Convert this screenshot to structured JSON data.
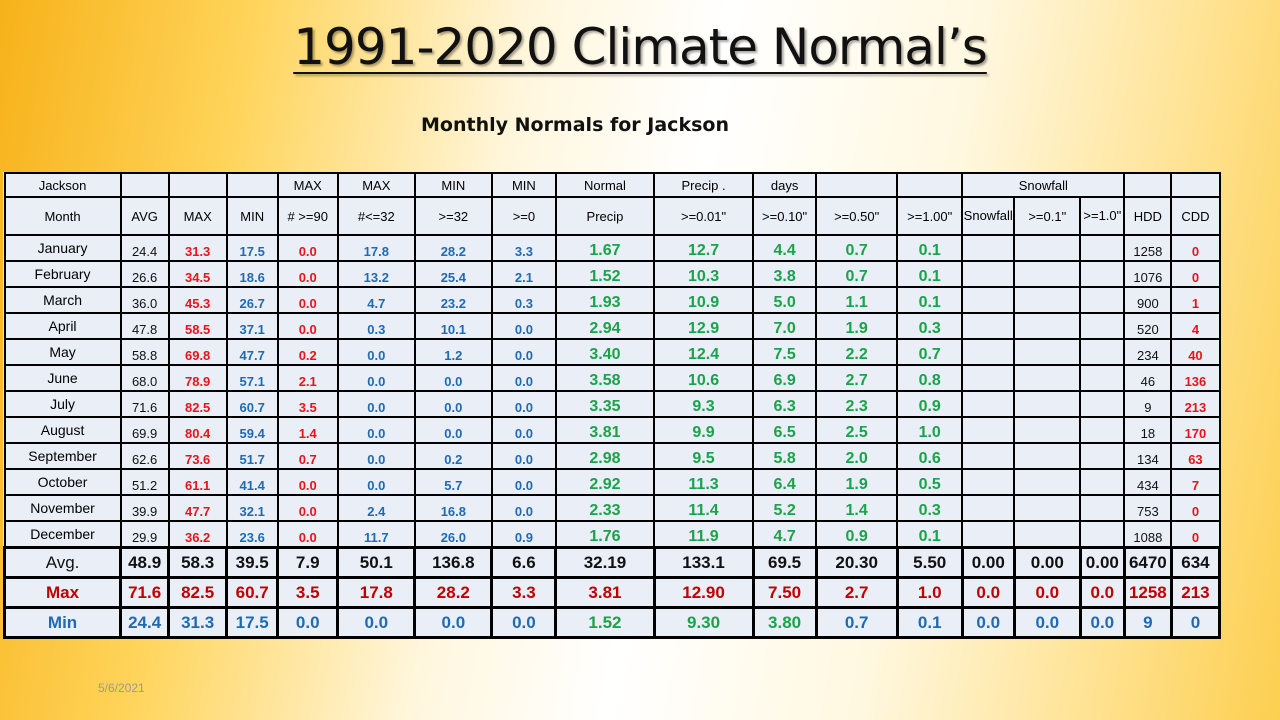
{
  "title": "1991-2020 Climate Normal’s",
  "subtitle": "Monthly Normals for Jackson",
  "date": "5/6/2021",
  "colors": {
    "max": "#e8141c",
    "min": "#1f6bb3",
    "precip": "#1aa34a"
  },
  "header1": [
    "Jackson",
    "",
    "",
    "",
    "MAX",
    "MAX",
    "MIN",
    "MIN",
    "Normal",
    "Precip .",
    "days",
    "",
    "",
    "Snowfall",
    "",
    ""
  ],
  "header2": [
    "Month",
    "AVG",
    "MAX",
    "MIN",
    "# >=90",
    "#<=32",
    ">=32",
    ">=0",
    "Precip",
    ">=0.01\"",
    ">=0.10\"",
    ">=0.50\"",
    ">=1.00\"",
    "Snowfall",
    ">=0.1\"",
    ">=1.0\"",
    "HDD",
    "CDD"
  ],
  "months": [
    [
      "January",
      "24.4",
      "31.3",
      "17.5",
      "0.0",
      "17.8",
      "28.2",
      "3.3",
      "1.67",
      "12.7",
      "4.4",
      "0.7",
      "0.1",
      "",
      "",
      "",
      "1258",
      "0"
    ],
    [
      "February",
      "26.6",
      "34.5",
      "18.6",
      "0.0",
      "13.2",
      "25.4",
      "2.1",
      "1.52",
      "10.3",
      "3.8",
      "0.7",
      "0.1",
      "",
      "",
      "",
      "1076",
      "0"
    ],
    [
      "March",
      "36.0",
      "45.3",
      "26.7",
      "0.0",
      "4.7",
      "23.2",
      "0.3",
      "1.93",
      "10.9",
      "5.0",
      "1.1",
      "0.1",
      "",
      "",
      "",
      "900",
      "1"
    ],
    [
      "April",
      "47.8",
      "58.5",
      "37.1",
      "0.0",
      "0.3",
      "10.1",
      "0.0",
      "2.94",
      "12.9",
      "7.0",
      "1.9",
      "0.3",
      "",
      "",
      "",
      "520",
      "4"
    ],
    [
      "May",
      "58.8",
      "69.8",
      "47.7",
      "0.2",
      "0.0",
      "1.2",
      "0.0",
      "3.40",
      "12.4",
      "7.5",
      "2.2",
      "0.7",
      "",
      "",
      "",
      "234",
      "40"
    ],
    [
      "June",
      "68.0",
      "78.9",
      "57.1",
      "2.1",
      "0.0",
      "0.0",
      "0.0",
      "3.58",
      "10.6",
      "6.9",
      "2.7",
      "0.8",
      "",
      "",
      "",
      "46",
      "136"
    ],
    [
      "July",
      "71.6",
      "82.5",
      "60.7",
      "3.5",
      "0.0",
      "0.0",
      "0.0",
      "3.35",
      "9.3",
      "6.3",
      "2.3",
      "0.9",
      "",
      "",
      "",
      "9",
      "213"
    ],
    [
      "August",
      "69.9",
      "80.4",
      "59.4",
      "1.4",
      "0.0",
      "0.0",
      "0.0",
      "3.81",
      "9.9",
      "6.5",
      "2.5",
      "1.0",
      "",
      "",
      "",
      "18",
      "170"
    ],
    [
      "September",
      "62.6",
      "73.6",
      "51.7",
      "0.7",
      "0.0",
      "0.2",
      "0.0",
      "2.98",
      "9.5",
      "5.8",
      "2.0",
      "0.6",
      "",
      "",
      "",
      "134",
      "63"
    ],
    [
      "October",
      "51.2",
      "61.1",
      "41.4",
      "0.0",
      "0.0",
      "5.7",
      "0.0",
      "2.92",
      "11.3",
      "6.4",
      "1.9",
      "0.5",
      "",
      "",
      "",
      "434",
      "7"
    ],
    [
      "November",
      "39.9",
      "47.7",
      "32.1",
      "0.0",
      "2.4",
      "16.8",
      "0.0",
      "2.33",
      "11.4",
      "5.2",
      "1.4",
      "0.3",
      "",
      "",
      "",
      "753",
      "0"
    ],
    [
      "December",
      "29.9",
      "36.2",
      "23.6",
      "0.0",
      "11.7",
      "26.0",
      "0.9",
      "1.76",
      "11.9",
      "4.7",
      "0.9",
      "0.1",
      "",
      "",
      "",
      "1088",
      "0"
    ]
  ],
  "summary": [
    [
      "Avg.",
      "48.9",
      "58.3",
      "39.5",
      "7.9",
      "50.1",
      "136.8",
      "6.6",
      "32.19",
      "133.1",
      "69.5",
      "20.30",
      "5.50",
      "0.00",
      "0.00",
      "0.00",
      "6470",
      "634"
    ],
    [
      "Max",
      "71.6",
      "82.5",
      "60.7",
      "3.5",
      "17.8",
      "28.2",
      "3.3",
      "3.81",
      "12.90",
      "7.50",
      "2.7",
      "1.0",
      "0.0",
      "0.0",
      "0.0",
      "1258",
      "213"
    ],
    [
      "Min",
      "24.4",
      "31.3",
      "17.5",
      "0.0",
      "0.0",
      "0.0",
      "0.0",
      "1.52",
      "9.30",
      "3.80",
      "0.7",
      "0.1",
      "0.0",
      "0.0",
      "0.0",
      "9",
      "0"
    ]
  ]
}
